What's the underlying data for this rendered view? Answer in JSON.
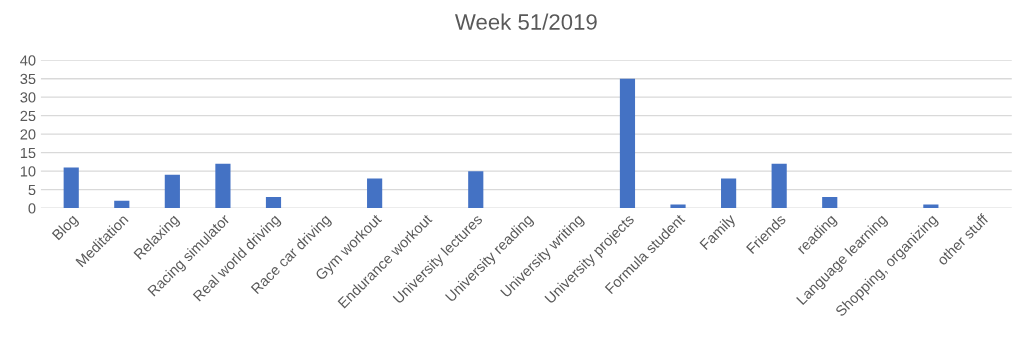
{
  "chart_data": {
    "type": "bar",
    "title": "Week 51/2019",
    "categories": [
      "Blog",
      "Meditation",
      "Relaxing",
      "Racing simulator",
      "Real world driving",
      "Race car driving",
      "Gym workout",
      "Endurance workout",
      "University lectures",
      "University reading",
      "University writing",
      "University projects",
      "Formula student",
      "Family",
      "Friends",
      "reading",
      "Language learning",
      "Shopping, organizing",
      "other stuff"
    ],
    "values": [
      11,
      2,
      9,
      12,
      3,
      0,
      8,
      0,
      10,
      0,
      0,
      35,
      1,
      8,
      12,
      3,
      0,
      1,
      0
    ],
    "color": "#4472c4",
    "ylim": [
      0,
      40
    ],
    "yticks": [
      0,
      5,
      10,
      15,
      20,
      25,
      30,
      35,
      40
    ],
    "grid": "y"
  }
}
